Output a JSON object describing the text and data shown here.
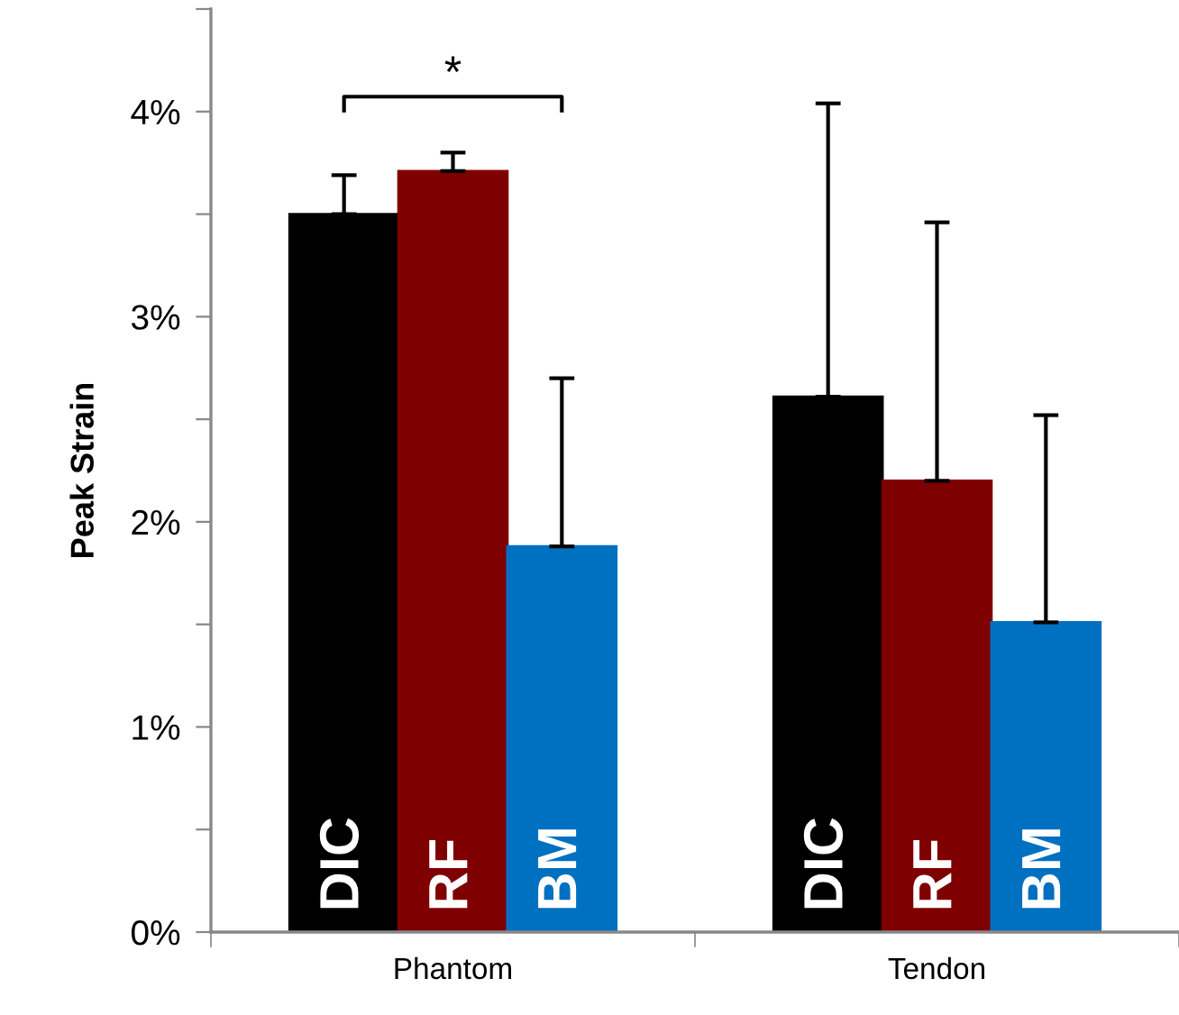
{
  "chart_data": {
    "type": "bar",
    "ylabel": "Peak Strain",
    "categories": [
      "Phantom",
      "Tendon"
    ],
    "series": [
      {
        "name": "DIC",
        "color": "#000000",
        "values": [
          3.5,
          2.61
        ],
        "errors": [
          [
            3.5,
            3.69
          ],
          [
            2.61,
            4.04
          ]
        ]
      },
      {
        "name": "RF",
        "color": "#7f0000",
        "values": [
          3.71,
          2.2
        ],
        "errors": [
          [
            3.71,
            3.8
          ],
          [
            2.2,
            3.46
          ]
        ]
      },
      {
        "name": "BM",
        "color": "#0070c0",
        "values": [
          1.88,
          1.51
        ],
        "errors": [
          [
            1.88,
            2.7
          ],
          [
            1.51,
            2.52
          ]
        ]
      }
    ],
    "ylim": [
      0,
      4.5
    ],
    "yticks": [
      {
        "value": 0,
        "label": "0%"
      },
      {
        "value": 0.5,
        "label": null
      },
      {
        "value": 1,
        "label": "1%"
      },
      {
        "value": 1.5,
        "label": null
      },
      {
        "value": 2,
        "label": "2%"
      },
      {
        "value": 2.5,
        "label": null
      },
      {
        "value": 3,
        "label": "3%"
      },
      {
        "value": 3.5,
        "label": null
      },
      {
        "value": 4,
        "label": "4%"
      },
      {
        "value": 4.5,
        "label": null
      }
    ],
    "annotations": [
      "*"
    ],
    "grid": false,
    "legend": false
  }
}
